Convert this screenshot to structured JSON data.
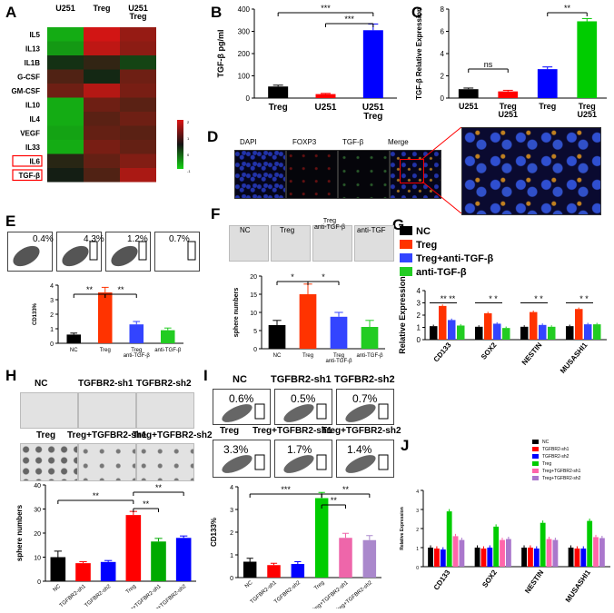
{
  "panels": {
    "A": "A",
    "B": "B",
    "C": "C",
    "D": "D",
    "E": "E",
    "F": "F",
    "G": "G",
    "H": "H",
    "I": "I",
    "J": "J"
  },
  "heatmap": {
    "columns": [
      "U251",
      "Treg",
      "U251\nTreg"
    ],
    "rows": [
      "IL5",
      "IL13",
      "IL1B",
      "G-CSF",
      "GM-CSF",
      "IL10",
      "IL4",
      "VEGF",
      "IL33",
      "IL6",
      "TGF-β"
    ],
    "boxed_rows": [
      "IL6",
      "TGF-β"
    ],
    "values": [
      [
        -1.6,
        1.9,
        1.3
      ],
      [
        -1.4,
        1.7,
        1.2
      ],
      [
        -0.3,
        0.3,
        -0.5
      ],
      [
        0.6,
        0.0,
        0.9
      ],
      [
        0.9,
        1.6,
        1.0
      ],
      [
        -1.6,
        0.9,
        0.7
      ],
      [
        -1.6,
        0.7,
        0.9
      ],
      [
        -1.5,
        0.8,
        0.7
      ],
      [
        -1.6,
        1.0,
        0.8
      ],
      [
        0.2,
        0.8,
        1.1
      ],
      [
        -0.1,
        0.6,
        1.5
      ]
    ],
    "scale_ticks": [
      "2",
      "1",
      "0",
      "-1"
    ]
  },
  "chart_data": [
    {
      "type": "bar",
      "panel": "B",
      "categories": [
        "Treg",
        "U251",
        "U251\nTreg"
      ],
      "values": [
        52,
        18,
        305
      ],
      "errors": [
        6,
        3,
        28
      ],
      "colors": [
        "#000000",
        "#ff0000",
        "#0000ff"
      ],
      "ylabel": "TGF-β pg/ml",
      "ylim": [
        0,
        400
      ],
      "yticks": [
        0,
        100,
        200,
        300,
        400
      ],
      "sig": [
        "***",
        "***"
      ]
    },
    {
      "type": "bar",
      "panel": "C",
      "categories": [
        "U251",
        "Treg\nU251",
        "Treg",
        "Treg\nU251"
      ],
      "values": [
        0.8,
        0.6,
        2.6,
        6.9
      ],
      "errors": [
        0.1,
        0.1,
        0.2,
        0.25
      ],
      "colors": [
        "#000000",
        "#ff0000",
        "#0000ff",
        "#00cc00"
      ],
      "ylabel": "TGF-β Relative Expression",
      "ylim": [
        0,
        8
      ],
      "yticks": [
        0,
        2,
        4,
        6,
        8
      ],
      "sig": [
        "ns",
        "**"
      ]
    },
    {
      "type": "bar",
      "panel": "E",
      "categories": [
        "NC",
        "Treg",
        "Treg\nanti-TGF-β",
        "anti-TGF-β"
      ],
      "values": [
        0.6,
        3.5,
        1.3,
        0.9
      ],
      "errors": [
        0.1,
        0.35,
        0.2,
        0.15
      ],
      "colors": [
        "#000000",
        "#ff3300",
        "#3344ff",
        "#22cc22"
      ],
      "ylabel": "CD133%",
      "ylim": [
        0,
        4
      ],
      "yticks": [
        0,
        1,
        2,
        3,
        4
      ],
      "sig": [
        "**",
        "**"
      ]
    },
    {
      "type": "bar",
      "panel": "F",
      "categories": [
        "NC",
        "Treg",
        "Treg\nanti-TGF-β",
        "anti-TGF-β"
      ],
      "values": [
        6.5,
        15,
        8.8,
        6
      ],
      "errors": [
        1.3,
        2.8,
        1.2,
        1.8
      ],
      "colors": [
        "#000000",
        "#ff3300",
        "#3344ff",
        "#22cc22"
      ],
      "ylabel": "sphere numbers",
      "ylim": [
        0,
        20
      ],
      "yticks": [
        0,
        5,
        10,
        15,
        20
      ],
      "sig": [
        "*",
        "*"
      ]
    },
    {
      "type": "bar",
      "panel": "G",
      "categories": [
        "CD133",
        "SOX2",
        "NESTIN",
        "MUSASHI1"
      ],
      "series": [
        {
          "name": "NC",
          "values": [
            1.1,
            1.05,
            1.05,
            1.1
          ],
          "color": "#000000"
        },
        {
          "name": "Treg",
          "values": [
            2.75,
            2.15,
            2.25,
            2.5
          ],
          "color": "#ff3300"
        },
        {
          "name": "Treg+anti-TGF-β",
          "values": [
            1.6,
            1.3,
            1.2,
            1.25
          ],
          "color": "#3344ff"
        },
        {
          "name": "anti-TGF-β",
          "values": [
            1.15,
            0.95,
            1.05,
            1.25
          ],
          "color": "#22cc22"
        }
      ],
      "ylabel": "Relative Expression",
      "ylim": [
        0,
        4
      ],
      "yticks": [
        0,
        1,
        2,
        3,
        4
      ],
      "sig_labels": [
        "** **",
        "* *",
        "* *",
        "* *"
      ]
    },
    {
      "type": "bar",
      "panel": "H",
      "categories": [
        "NC",
        "TGFBR2-sh1",
        "TGFBR2-sh2",
        "Treg",
        "Treg+TGFBR2-sh1",
        "Treg+TGFBR2-sh2"
      ],
      "values": [
        10,
        7.5,
        8,
        27.5,
        16.5,
        18
      ],
      "errors": [
        2.5,
        0.6,
        0.6,
        1.5,
        1.3,
        0.8
      ],
      "colors": [
        "#000000",
        "#ff0000",
        "#0000ff",
        "#ff0000",
        "#00aa00",
        "#0000ff"
      ],
      "ylabel": "sphere numbers",
      "ylim": [
        0,
        40
      ],
      "yticks": [
        0,
        10,
        20,
        30,
        40
      ],
      "sig": [
        "**",
        "**",
        "**"
      ]
    },
    {
      "type": "bar",
      "panel": "I",
      "categories": [
        "NC",
        "TGFBR2-sh1",
        "TGFBR2-sh2",
        "Treg",
        "Treg+TGFBR2-sh1",
        "Treg+TGFBR2-sh2"
      ],
      "values": [
        0.7,
        0.55,
        0.6,
        3.5,
        1.75,
        1.65
      ],
      "errors": [
        0.15,
        0.08,
        0.1,
        0.25,
        0.2,
        0.2
      ],
      "colors": [
        "#000000",
        "#ff0000",
        "#0000ff",
        "#00cc00",
        "#ee66aa",
        "#aa88cc"
      ],
      "ylabel": "CD133%",
      "ylim": [
        0,
        4
      ],
      "yticks": [
        0,
        1,
        2,
        3,
        4
      ],
      "sig": [
        "***",
        "**",
        "**"
      ]
    },
    {
      "type": "bar",
      "panel": "J",
      "categories": [
        "CD133",
        "SOX2",
        "NESTIN",
        "MUSASHI1"
      ],
      "series": [
        {
          "name": "NC",
          "values": [
            1,
            1,
            1,
            1
          ],
          "color": "#000000"
        },
        {
          "name": "TGFBR2-sh1",
          "values": [
            0.95,
            0.95,
            1.0,
            0.95
          ],
          "color": "#ff0000"
        },
        {
          "name": "TGFBR2-sh2",
          "values": [
            0.9,
            1.0,
            0.95,
            0.95
          ],
          "color": "#0000ff"
        },
        {
          "name": "Treg",
          "values": [
            2.9,
            2.1,
            2.3,
            2.4
          ],
          "color": "#00cc00"
        },
        {
          "name": "Treg+TGFBR2-sh1",
          "values": [
            1.6,
            1.4,
            1.45,
            1.55
          ],
          "color": "#ff66aa"
        },
        {
          "name": "Treg+TGFBR2-sh2",
          "values": [
            1.4,
            1.45,
            1.4,
            1.5
          ],
          "color": "#aa77cc"
        }
      ],
      "ylabel": "Relative Expression",
      "ylim": [
        0,
        4
      ],
      "yticks": [
        0,
        1,
        2,
        3,
        4
      ]
    }
  ],
  "panel_d": {
    "labels": [
      "DAPI",
      "FOXP3",
      "TGF-β",
      "Merge"
    ]
  },
  "panel_e": {
    "percents": [
      "0.4%",
      "4.3%",
      "1.2%",
      "0.7%"
    ]
  },
  "panel_f": {
    "labels": [
      "NC",
      "Treg",
      "Treg\nanti-TGF-β",
      "anti-TGF"
    ]
  },
  "panel_h": {
    "top_labels": [
      "NC",
      "TGFBR2-sh1",
      "TGFBR2-sh2"
    ],
    "bottom_labels": [
      "Treg",
      "Treg+TGFBR2-sh1",
      "Treg+TGFBR2-sh2"
    ]
  },
  "panel_i": {
    "top_labels": [
      "NC",
      "TGFBR2-sh1",
      "TGFBR2-sh2"
    ],
    "bottom_labels": [
      "Treg",
      "Treg+TGFBR2-sh1",
      "Treg+TGFBR2-sh2"
    ],
    "top_percents": [
      "0.6%",
      "0.5%",
      "0.7%"
    ],
    "bottom_percents": [
      "3.3%",
      "1.7%",
      "1.4%"
    ]
  }
}
